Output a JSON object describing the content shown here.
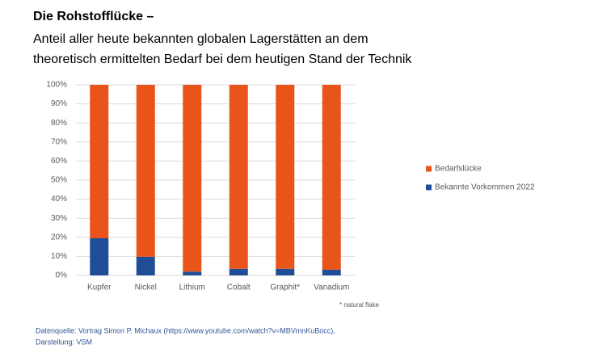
{
  "chart_data": {
    "type": "stacked_bar",
    "title": "Die Rohstofflücke –",
    "subtitle_lines": [
      "Anteil aller heute bekannten globalen Lagerstätten an dem",
      "theoretisch  ermittelten Bedarf bei dem heutigen Stand der Technik"
    ],
    "categories": [
      "Kupfer",
      "Nickel",
      "Lithium",
      "Cobalt",
      "Graphit*",
      "Vanadium"
    ],
    "series": [
      {
        "name": "Bedarfslücke",
        "color": "#e8541a",
        "values": [
          80.5,
          90.2,
          98,
          96.5,
          96.5,
          97
        ]
      },
      {
        "name": "Bekannte Vorkommen 2022",
        "color": "#1f4e96",
        "values": [
          19.5,
          9.8,
          2,
          3.5,
          3.5,
          3
        ]
      }
    ],
    "ylim": [
      0,
      100
    ],
    "yticks": [
      {
        "value": 0,
        "label": "0%"
      },
      {
        "value": 10,
        "label": "10%"
      },
      {
        "value": 20,
        "label": "20%"
      },
      {
        "value": 30,
        "label": "30%"
      },
      {
        "value": 40,
        "label": "40%"
      },
      {
        "value": 50,
        "label": "50%"
      },
      {
        "value": 60,
        "label": "60%"
      },
      {
        "value": 70,
        "label": "70%"
      },
      {
        "value": 80,
        "label": "80%"
      },
      {
        "value": 90,
        "label": "90%"
      },
      {
        "value": 100,
        "label": "100%"
      }
    ],
    "grid": true,
    "legend": "right",
    "footnote": "* natural flake",
    "source_lines": [
      "Datenquelle: Vortrag Simon P. Michaux (https://www.youtube.com/watch?v=MBVmnKuBocc),",
      "Darstellung: VSM"
    ]
  }
}
